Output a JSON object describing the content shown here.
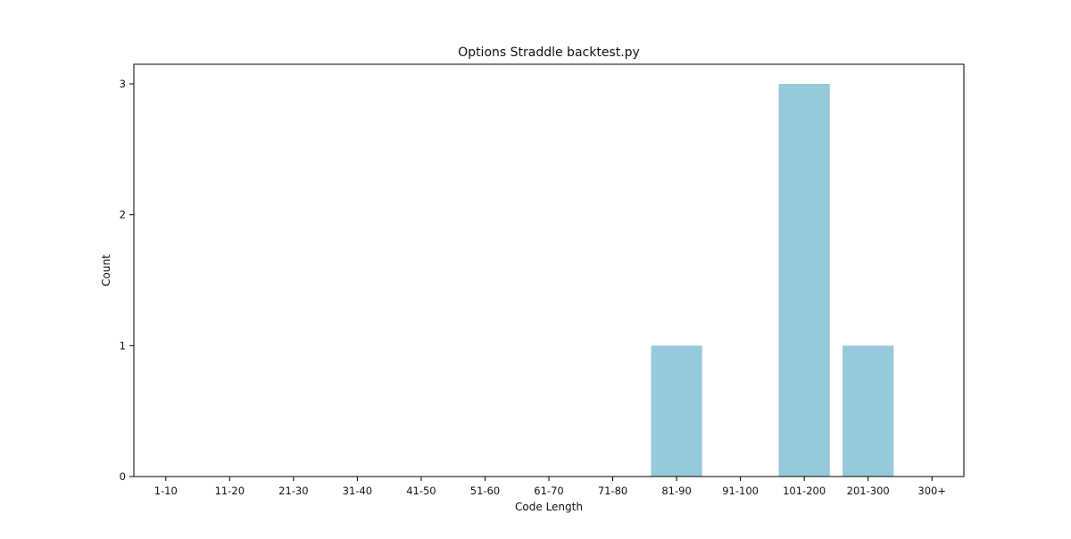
{
  "chart_data": {
    "type": "bar",
    "title": "Options Straddle backtest.py",
    "xlabel": "Code Length",
    "ylabel": "Count",
    "categories": [
      "1-10",
      "11-20",
      "21-30",
      "31-40",
      "41-50",
      "51-60",
      "61-70",
      "71-80",
      "81-90",
      "91-100",
      "101-200",
      "201-300",
      "300+"
    ],
    "values": [
      0,
      0,
      0,
      0,
      0,
      0,
      0,
      0,
      1,
      0,
      3,
      1,
      0
    ],
    "yticks": [
      0,
      1,
      2,
      3
    ],
    "ylim": [
      0,
      3.15
    ],
    "grid": false,
    "bar_color": "#96c9dc"
  }
}
